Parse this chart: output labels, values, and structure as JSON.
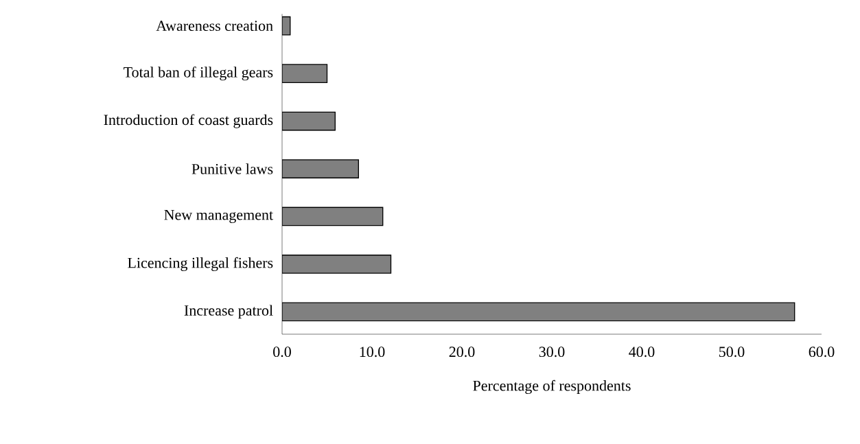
{
  "chart_data": {
    "type": "bar",
    "orientation": "horizontal",
    "xlabel": "Percentage of respondents",
    "categories": [
      "Awareness creation",
      "Total ban of illegal gears",
      "Introduction of coast guards",
      "Punitive laws",
      "New management",
      "Licencing  illegal fishers",
      "Increase patrol"
    ],
    "values": [
      0.9,
      5.0,
      5.9,
      8.5,
      11.2,
      12.1,
      57.0
    ],
    "color": "#808080",
    "xlim": [
      0,
      60
    ],
    "xticks": [
      {
        "value": 0,
        "label": "0.0"
      },
      {
        "value": 10,
        "label": "10.0"
      },
      {
        "value": 20,
        "label": "20.0"
      },
      {
        "value": 30,
        "label": "30.0"
      },
      {
        "value": 40,
        "label": "40.0"
      },
      {
        "value": 50,
        "label": "50.0"
      },
      {
        "value": 60,
        "label": "60.0"
      }
    ],
    "grid": false
  }
}
